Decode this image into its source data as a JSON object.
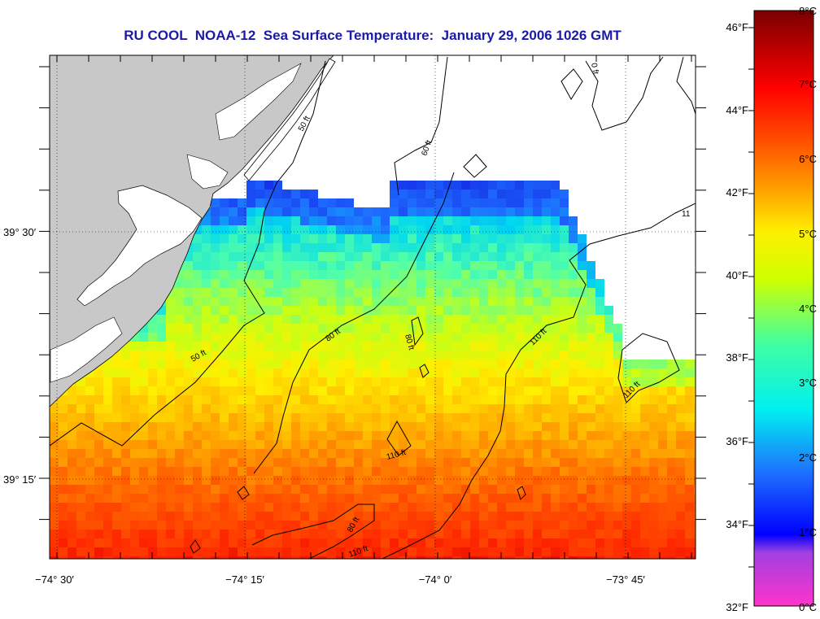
{
  "title": "RU COOL  NOAA-12  Sea Surface Temperature:  January 29, 2006 1026 GMT",
  "map": {
    "lon_ticks": [
      "−74° 30′",
      "−74° 15′",
      "−74° 0′",
      "−73° 45′"
    ],
    "lat_ticks": [
      "39° 30′",
      "39° 15′"
    ],
    "contour_labels": [
      "50 ft",
      "50 ft",
      "60 ft",
      "80 ft",
      "80 ft",
      "80 ft",
      "110 ft",
      "110 ft",
      "110 ft",
      "110 ft",
      "11",
      "0 ft"
    ]
  },
  "colorbar": {
    "fahrenheit_labels": [
      "46°F",
      "44°F",
      "42°F",
      "40°F",
      "38°F",
      "36°F",
      "34°F",
      "32°F"
    ],
    "celsius_labels": [
      "8°C",
      "7°C",
      "6°C",
      "5°C",
      "4°C",
      "3°C",
      "2°C",
      "1°C",
      "0°C"
    ]
  },
  "colors": {
    "title": "#1a1aa6",
    "land": "#c8c8c8"
  }
}
